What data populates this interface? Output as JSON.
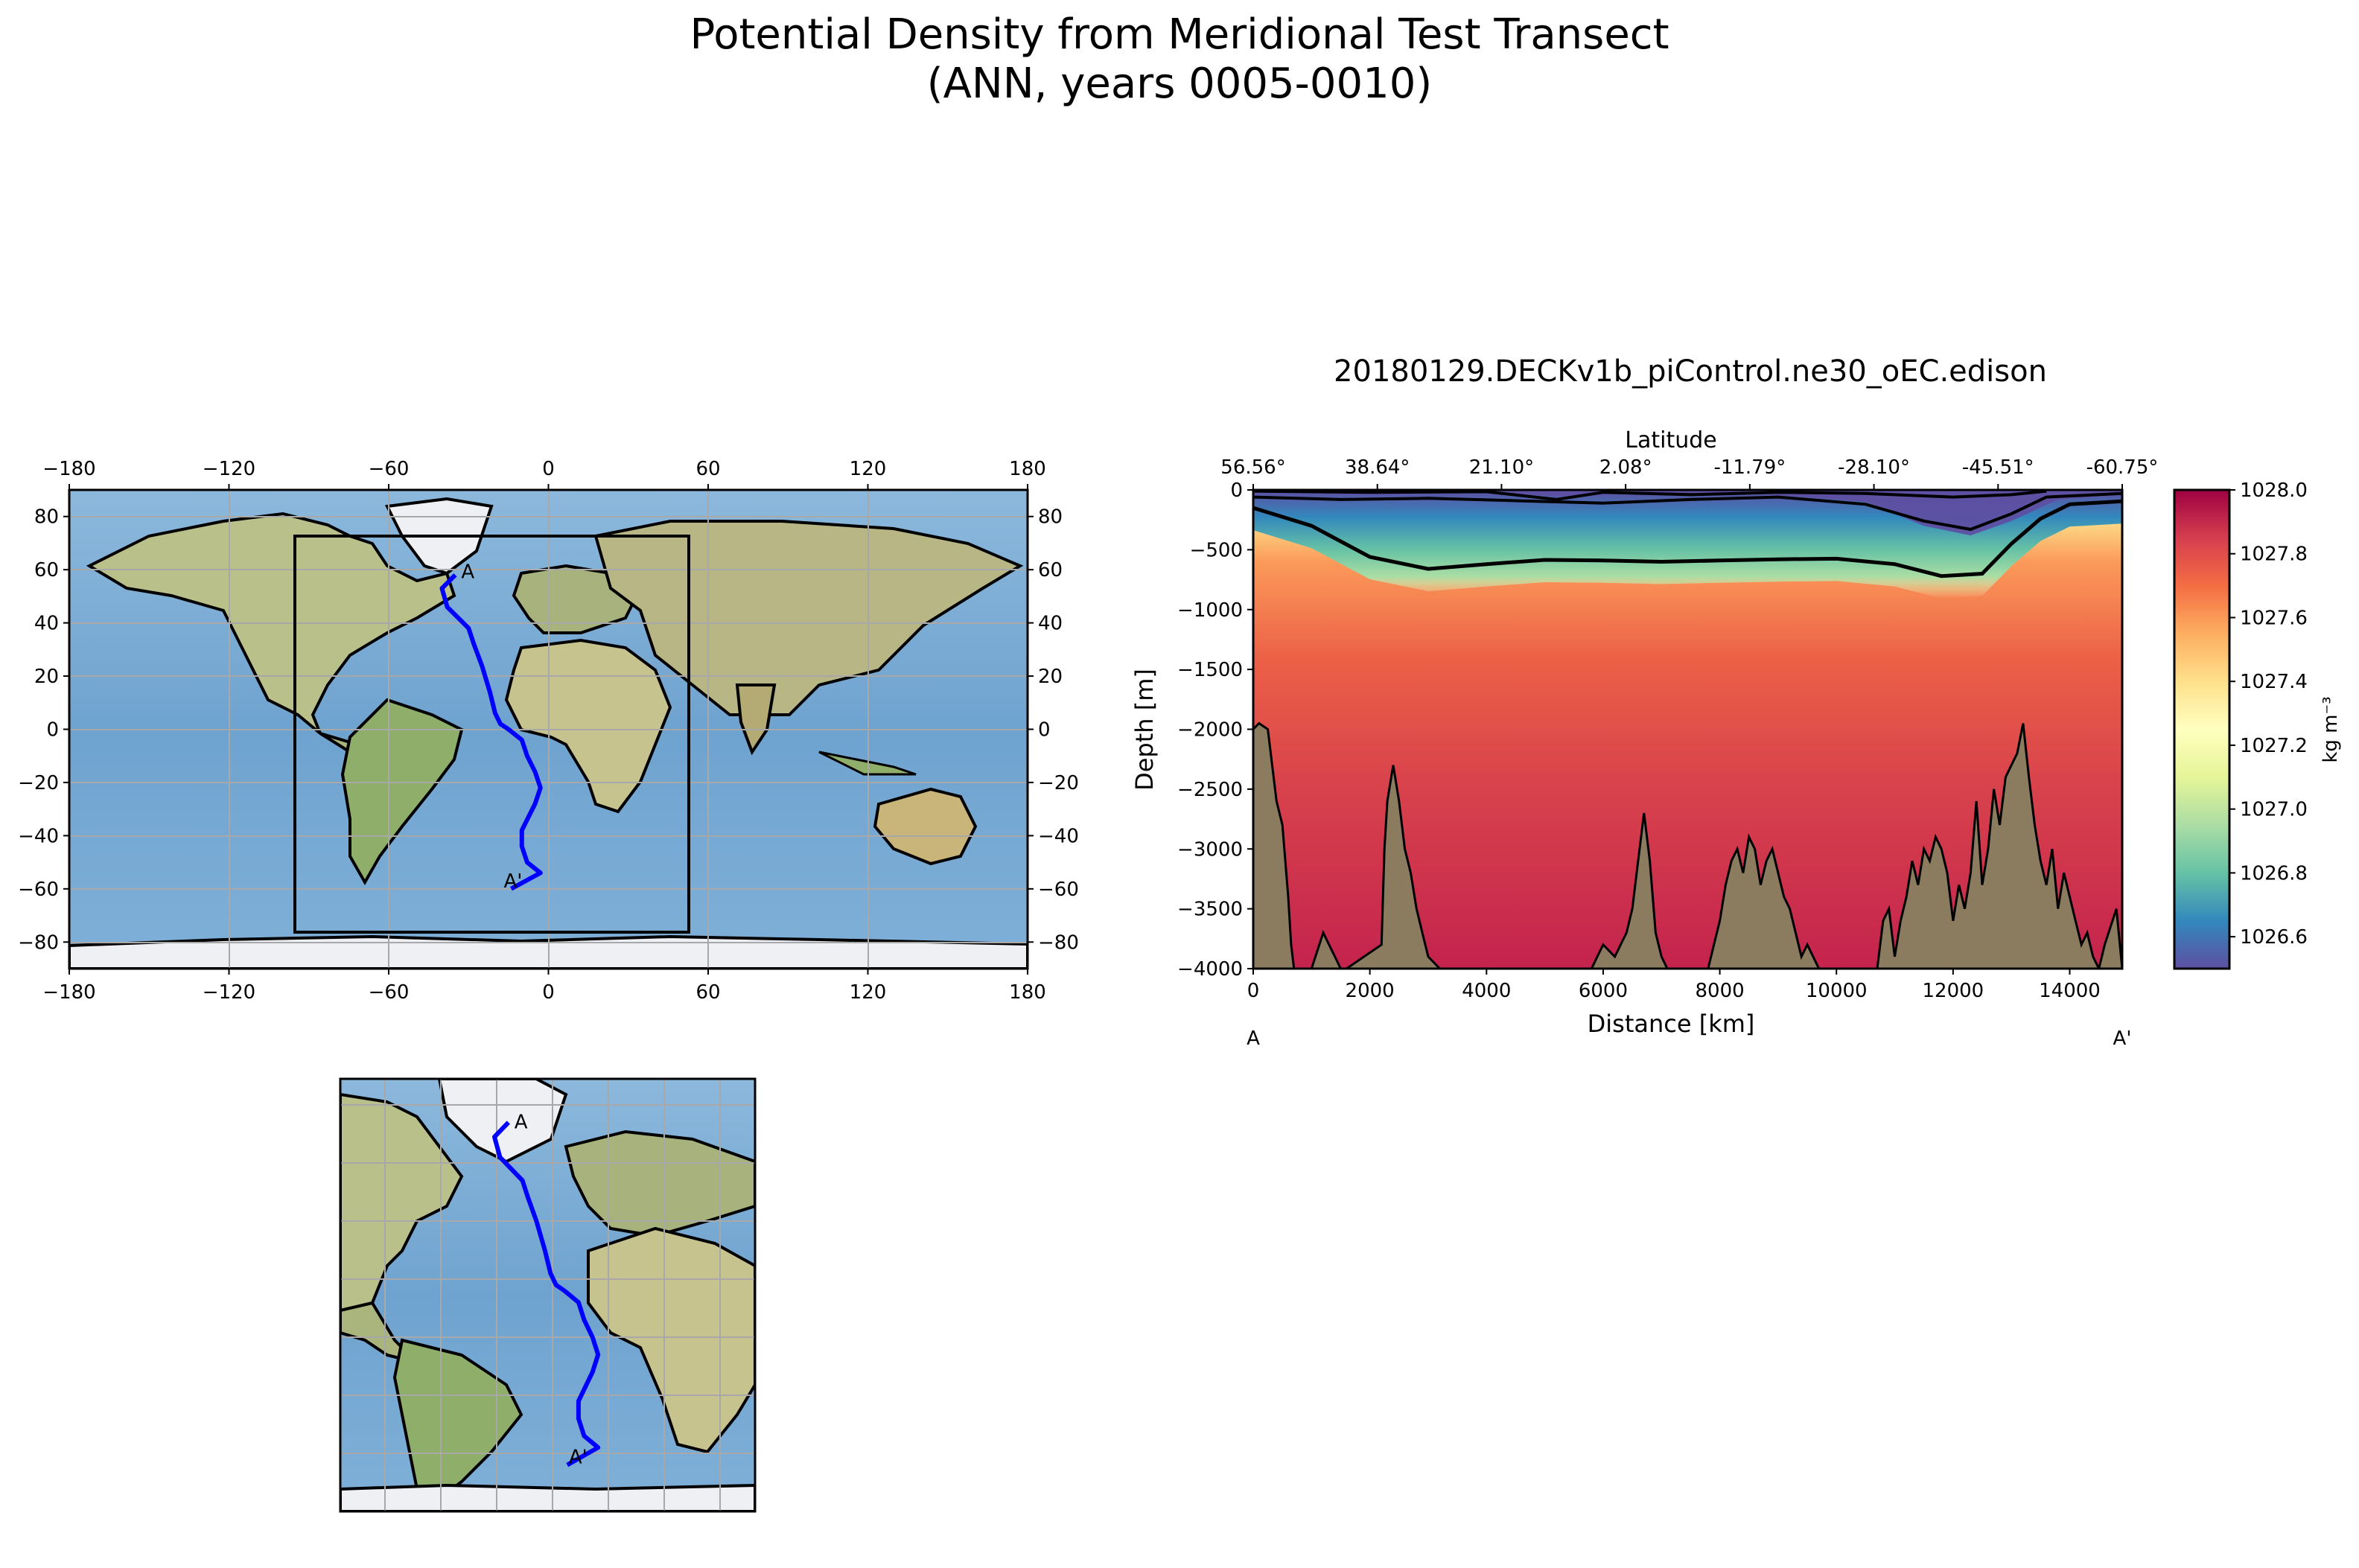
{
  "figure": {
    "title_line1": "Potential Density from Meridional Test Transect",
    "title_line2": "(ANN, years 0005-0010)"
  },
  "chart_data": [
    {
      "type": "map",
      "name": "global-map",
      "projection": "PlateCarree",
      "xticks": [
        "−180",
        "−120",
        "−60",
        "0",
        "60",
        "120",
        "180"
      ],
      "yticks": [
        "80",
        "60",
        "40",
        "20",
        "0",
        "−20",
        "−40",
        "−60",
        "−80"
      ],
      "xlim": [
        -180,
        180
      ],
      "ylim": [
        -90,
        90
      ],
      "grid": true,
      "inset_box": {
        "lon": [
          -95,
          53
        ],
        "lat": [
          -76,
          73
        ]
      },
      "transect": {
        "color": "#0000ff",
        "lon": [
          -35,
          -40,
          -38,
          -30,
          -28,
          -25,
          -22,
          -20,
          -18,
          -15,
          -10,
          -8,
          -5,
          -3,
          -5,
          -10,
          -10,
          -8,
          -3,
          -14
        ],
        "lat": [
          58,
          53,
          46,
          38,
          32,
          24,
          14,
          6,
          2,
          0,
          -4,
          -10,
          -16,
          -22,
          -28,
          -38,
          -44,
          -50,
          -54,
          -60
        ]
      },
      "start_label": "A",
      "end_label": "A'"
    },
    {
      "type": "map",
      "name": "zoom-map",
      "projection": "PlateCarree",
      "xlim": [
        -95,
        53
      ],
      "ylim": [
        -76,
        73
      ],
      "grid": true,
      "start_label": "A",
      "end_label": "A'"
    },
    {
      "type": "heatmap",
      "name": "transect-section",
      "title": "20180129.DECKv1b_piControl.ne30_oEC.edison",
      "xlabel": "Distance [km]",
      "ylabel": "Depth [m]",
      "top_xlabel": "Latitude",
      "xlim": [
        0,
        14900
      ],
      "ylim": [
        -4000,
        0
      ],
      "x_ticks": [
        "0",
        "2000",
        "4000",
        "6000",
        "8000",
        "10000",
        "12000",
        "14000"
      ],
      "y_ticks": [
        "0",
        "−500",
        "−1000",
        "−1500",
        "−2000",
        "−2500",
        "−3000",
        "−3500",
        "−4000"
      ],
      "latitude_ticks": [
        "56.56°",
        "38.64°",
        "21.10°",
        "2.08°",
        "-11.79°",
        "-28.10°",
        "-45.51°",
        "-60.75°"
      ],
      "start_label": "A",
      "end_label": "A'",
      "colorbar": {
        "label": "kg m$^{-3}$",
        "label_display": "kg m⁻³",
        "range": [
          1026.5,
          1028.0
        ],
        "ticks": [
          "1028.0",
          "1027.8",
          "1027.6",
          "1027.4",
          "1027.2",
          "1027.0",
          "1026.8",
          "1026.6"
        ],
        "colormap": "Spectral_r"
      },
      "contour_1027_depth": {
        "x": [
          0,
          1000,
          2000,
          3000,
          4000,
          5000,
          6000,
          7000,
          8000,
          9000,
          10000,
          11000,
          11800,
          12500,
          13000,
          13500,
          14000,
          14900
        ],
        "y": [
          -150,
          -300,
          -560,
          -660,
          -620,
          -585,
          -590,
          -600,
          -590,
          -580,
          -575,
          -620,
          -720,
          -700,
          -450,
          -240,
          -120,
          -95
        ]
      },
      "bathymetry": {
        "x": [
          0,
          100,
          250,
          400,
          500,
          600,
          650,
          700,
          1000,
          1200,
          1400,
          1500,
          1600,
          2200,
          2250,
          2300,
          2400,
          2500,
          2600,
          2700,
          2800,
          2900,
          3000,
          3200,
          5800,
          5900,
          6000,
          6200,
          6400,
          6500,
          6600,
          6700,
          6800,
          6900,
          7000,
          7100,
          7800,
          7900,
          8000,
          8100,
          8200,
          8300,
          8400,
          8500,
          8600,
          8700,
          8800,
          8900,
          9000,
          9100,
          9200,
          9300,
          9400,
          9500,
          9600,
          9700,
          9800,
          10700,
          10800,
          10900,
          11000,
          11100,
          11200,
          11300,
          11400,
          11500,
          11600,
          11700,
          11800,
          11900,
          12000,
          12100,
          12200,
          12300,
          12400,
          12500,
          12600,
          12700,
          12800,
          12900,
          13000,
          13100,
          13200,
          13300,
          13400,
          13500,
          13600,
          13700,
          13800,
          13900,
          14000,
          14100,
          14200,
          14300,
          14400,
          14500,
          14600,
          14800,
          14900
        ],
        "depth": [
          -2000,
          -1950,
          -2000,
          -2600,
          -2800,
          -3400,
          -3800,
          -4000,
          -4000,
          -3700,
          -3900,
          -4000,
          -4000,
          -3800,
          -3000,
          -2600,
          -2300,
          -2600,
          -3000,
          -3200,
          -3500,
          -3700,
          -3900,
          -4000,
          -4000,
          -3900,
          -3800,
          -3900,
          -3700,
          -3500,
          -3100,
          -2700,
          -3100,
          -3700,
          -3900,
          -4000,
          -4000,
          -3800,
          -3600,
          -3300,
          -3100,
          -3000,
          -3200,
          -2900,
          -3000,
          -3300,
          -3100,
          -3000,
          -3200,
          -3400,
          -3500,
          -3700,
          -3900,
          -3800,
          -3900,
          -4000,
          -4000,
          -4000,
          -3600,
          -3500,
          -3900,
          -3600,
          -3400,
          -3100,
          -3300,
          -3000,
          -3100,
          -2900,
          -3000,
          -3200,
          -3600,
          -3300,
          -3500,
          -3200,
          -2600,
          -3300,
          -3000,
          -2500,
          -2800,
          -2400,
          -2300,
          -2200,
          -1950,
          -2400,
          -2800,
          -3100,
          -3300,
          -3000,
          -3500,
          -3200,
          -3400,
          -3600,
          -3800,
          -3700,
          -3900,
          -4000,
          -3800,
          -3500,
          -4000
        ]
      }
    }
  ]
}
